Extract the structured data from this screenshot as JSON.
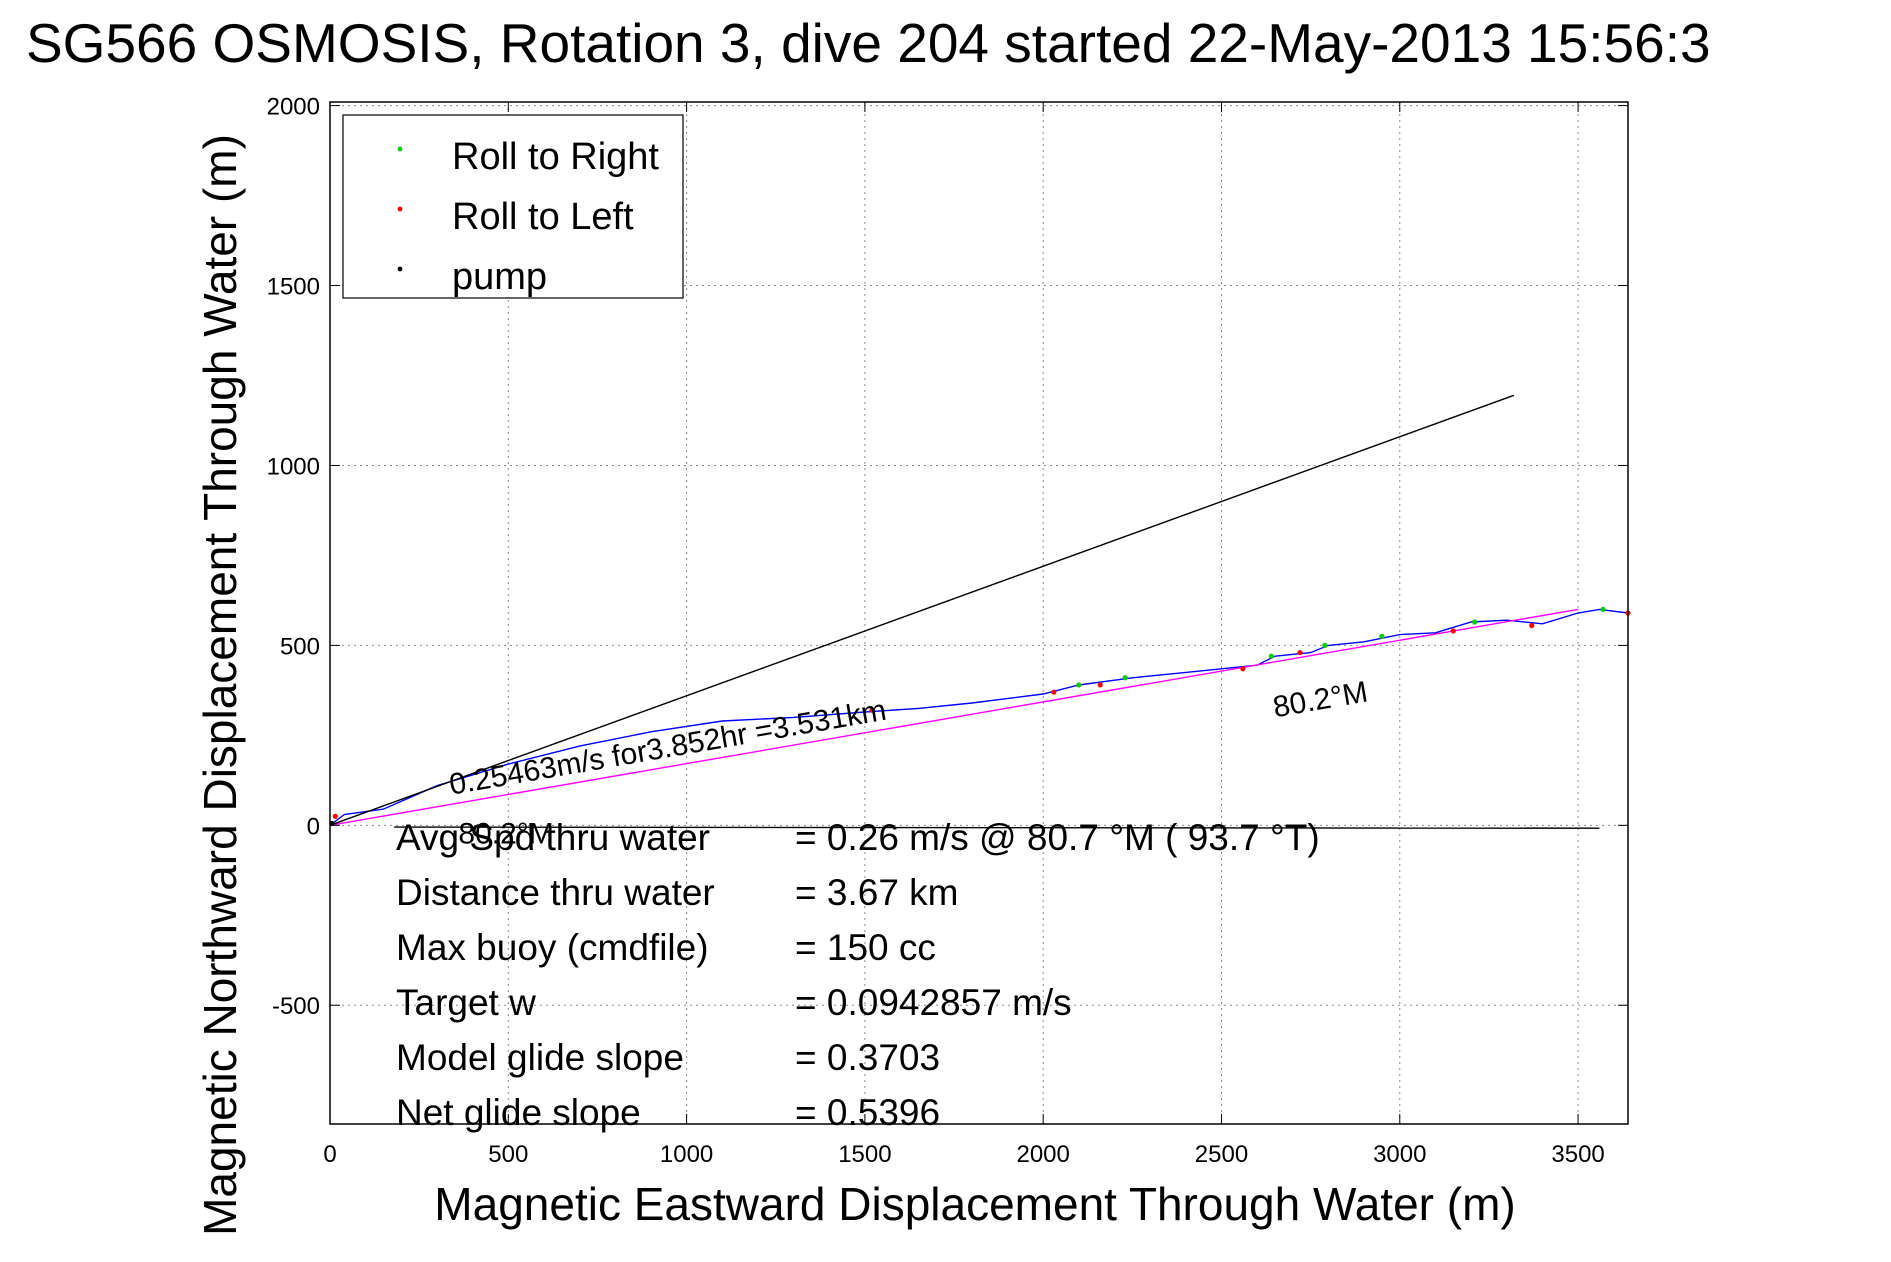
{
  "chart_data": {
    "type": "line",
    "title": "SG566 OSMOSIS, Rotation 3, dive 204 started 22-May-2013 15:56:3",
    "xlabel": "Magnetic Eastward Displacement Through Water (m)",
    "ylabel": "Magnetic Northward Displacement Through Water (m)",
    "xlim": [
      0,
      3640
    ],
    "ylim": [
      -830,
      2010
    ],
    "xticks": [
      0,
      500,
      1000,
      1500,
      2000,
      2500,
      3000,
      3500
    ],
    "yticks": [
      -500,
      0,
      500,
      1000,
      1500,
      2000
    ],
    "xtick_labels": [
      "0",
      "500",
      "1000",
      "1500",
      "2000",
      "2500",
      "3000",
      "3500"
    ],
    "ytick_labels": [
      "-500",
      "0",
      "500",
      "1000",
      "1500",
      "2000"
    ],
    "grid": true,
    "legend": {
      "placement": "top-left",
      "entries": [
        {
          "label": "Roll to Right",
          "color": "#00cc00"
        },
        {
          "label": "Roll to Left",
          "color": "#ff0000"
        },
        {
          "label": "pump",
          "color": "#000000"
        }
      ]
    },
    "series": [
      {
        "name": "",
        "color": "#0000ff",
        "x": [
          0,
          40,
          150,
          300,
          500,
          700,
          900,
          1100,
          1300,
          1500,
          1650,
          1800,
          2000,
          2100,
          2250,
          2400,
          2500,
          2600,
          2650,
          2750,
          2800,
          2900,
          3000,
          3100,
          3200,
          3300,
          3400,
          3500,
          3560,
          3640
        ],
        "y": [
          0,
          30,
          45,
          110,
          170,
          220,
          260,
          290,
          300,
          315,
          325,
          340,
          365,
          390,
          410,
          425,
          435,
          445,
          470,
          480,
          500,
          510,
          530,
          535,
          565,
          570,
          560,
          590,
          600,
          590
        ]
      },
      {
        "name": "",
        "color": "#ff00ff",
        "x": [
          0,
          3500
        ],
        "y": [
          0,
          600
        ]
      },
      {
        "name": "",
        "color": "#000000",
        "x": [
          0,
          3320
        ],
        "y": [
          0,
          1195
        ]
      },
      {
        "name": "",
        "color": "#000000",
        "x": [
          180,
          3560
        ],
        "y": [
          -5,
          -8
        ]
      }
    ],
    "markers": [
      {
        "kind": "right",
        "color": "#00cc00",
        "x": [
          2100,
          2230,
          2640,
          2790,
          2950,
          3210,
          3570
        ],
        "y": [
          390,
          410,
          470,
          500,
          525,
          565,
          600
        ]
      },
      {
        "kind": "left",
        "color": "#ff0000",
        "x": [
          15,
          1520,
          2030,
          2160,
          2560,
          2720,
          3150,
          3370,
          3640
        ],
        "y": [
          25,
          320,
          370,
          390,
          435,
          480,
          540,
          555,
          590
        ]
      },
      {
        "kind": "pump",
        "color": "#000000",
        "x": [
          5
        ],
        "y": [
          5
        ]
      }
    ],
    "annotations": [
      {
        "text": "0.25463m/s for3.852hr =3.531km",
        "x": 340,
        "y": 85,
        "angle": -9.8,
        "size": 30
      },
      {
        "text": "80.2°M",
        "x": 360,
        "y": -50,
        "angle": 0,
        "size": 30
      },
      {
        "text": "80.2°M",
        "x": 2650,
        "y": 300,
        "angle": -9.8,
        "size": 30
      }
    ],
    "stats": [
      {
        "label": "Avg Spd thru water",
        "value": "=  0.26 m/s @  80.7 °M ( 93.7 °T)"
      },
      {
        "label": "Distance thru water",
        "value": "=  3.67 km"
      },
      {
        "label": "Max buoy (cmdfile)",
        "value": "= 150 cc"
      },
      {
        "label": "Target w",
        "value": "= 0.0942857 m/s"
      },
      {
        "label": "Model glide slope",
        "value": "= 0.3703"
      },
      {
        "label": "Net glide slope",
        "value": "= 0.5396"
      }
    ]
  }
}
